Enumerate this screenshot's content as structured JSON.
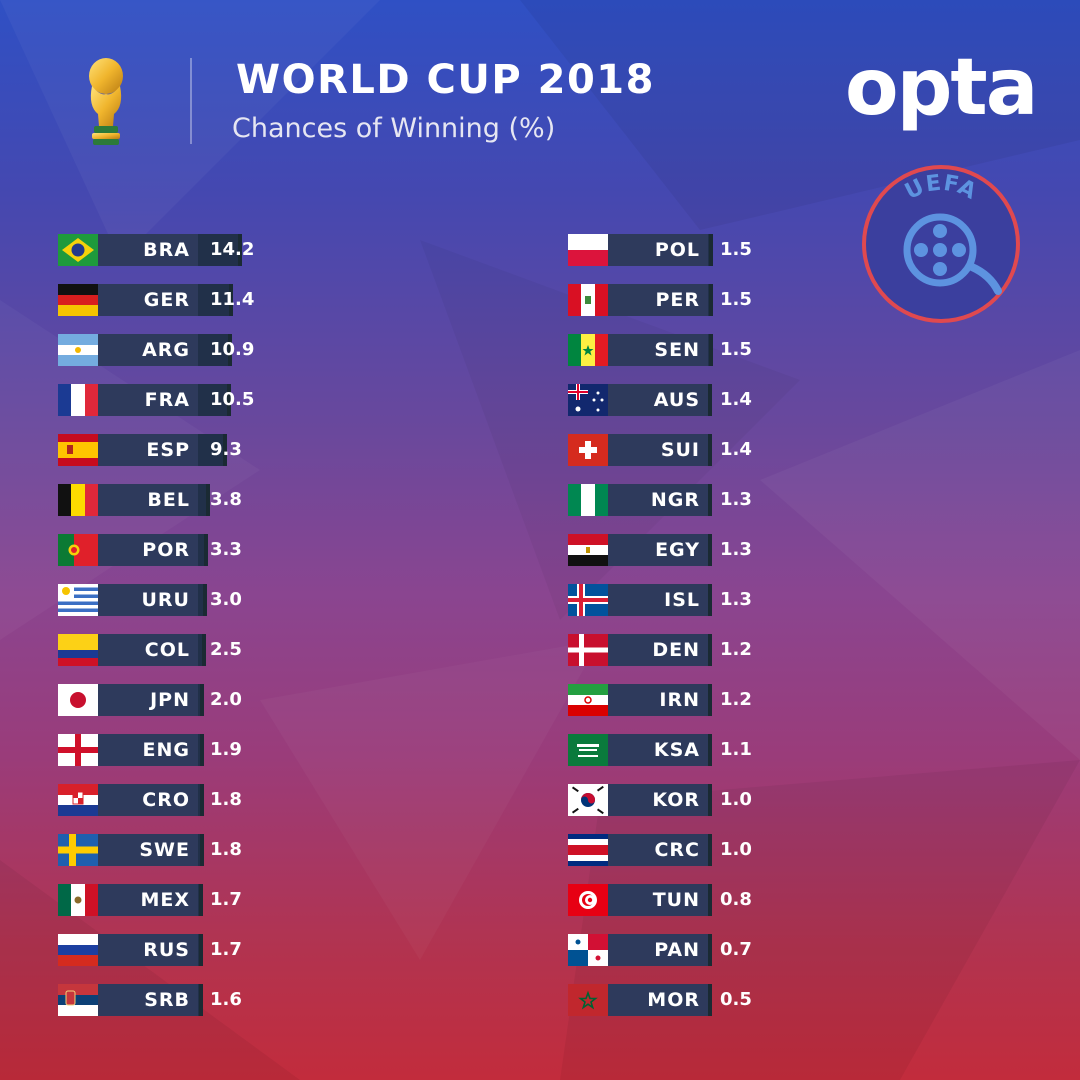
{
  "header": {
    "title": "WORLD CUP 2018",
    "subtitle": "Chances of Winning (%)",
    "brand": "opta",
    "watermark_text": "UEFA"
  },
  "colors": {
    "bar": "#213049",
    "code_box": "#2e3a5c",
    "text": "#ffffff"
  },
  "chart_data": {
    "type": "bar",
    "title": "WORLD CUP 2018",
    "subtitle": "Chances of Winning (%)",
    "orientation": "horizontal",
    "columns": [
      {
        "rows": [
          {
            "code": "BRA",
            "flag": "brazil-flag-icon",
            "value": 14.2,
            "label": "14.2"
          },
          {
            "code": "GER",
            "flag": "germany-flag-icon",
            "value": 11.4,
            "label": "11.4"
          },
          {
            "code": "ARG",
            "flag": "argentina-flag-icon",
            "value": 10.9,
            "label": "10.9"
          },
          {
            "code": "FRA",
            "flag": "france-flag-icon",
            "value": 10.5,
            "label": "10.5"
          },
          {
            "code": "ESP",
            "flag": "spain-flag-icon",
            "value": 9.3,
            "label": "9.3"
          },
          {
            "code": "BEL",
            "flag": "belgium-flag-icon",
            "value": 3.8,
            "label": "3.8"
          },
          {
            "code": "POR",
            "flag": "portugal-flag-icon",
            "value": 3.3,
            "label": "3.3"
          },
          {
            "code": "URU",
            "flag": "uruguay-flag-icon",
            "value": 3.0,
            "label": "3.0"
          },
          {
            "code": "COL",
            "flag": "colombia-flag-icon",
            "value": 2.5,
            "label": "2.5"
          },
          {
            "code": "JPN",
            "flag": "japan-flag-icon",
            "value": 2.0,
            "label": "2.0"
          },
          {
            "code": "ENG",
            "flag": "england-flag-icon",
            "value": 1.9,
            "label": "1.9"
          },
          {
            "code": "CRO",
            "flag": "croatia-flag-icon",
            "value": 1.8,
            "label": "1.8"
          },
          {
            "code": "SWE",
            "flag": "sweden-flag-icon",
            "value": 1.8,
            "label": "1.8"
          },
          {
            "code": "MEX",
            "flag": "mexico-flag-icon",
            "value": 1.7,
            "label": "1.7"
          },
          {
            "code": "RUS",
            "flag": "russia-flag-icon",
            "value": 1.7,
            "label": "1.7"
          },
          {
            "code": "SRB",
            "flag": "serbia-flag-icon",
            "value": 1.6,
            "label": "1.6"
          }
        ]
      },
      {
        "rows": [
          {
            "code": "POL",
            "flag": "poland-flag-icon",
            "value": 1.5,
            "label": "1.5"
          },
          {
            "code": "PER",
            "flag": "peru-flag-icon",
            "value": 1.5,
            "label": "1.5"
          },
          {
            "code": "SEN",
            "flag": "senegal-flag-icon",
            "value": 1.5,
            "label": "1.5"
          },
          {
            "code": "AUS",
            "flag": "australia-flag-icon",
            "value": 1.4,
            "label": "1.4"
          },
          {
            "code": "SUI",
            "flag": "switzerland-flag-icon",
            "value": 1.4,
            "label": "1.4"
          },
          {
            "code": "NGR",
            "flag": "nigeria-flag-icon",
            "value": 1.3,
            "label": "1.3"
          },
          {
            "code": "EGY",
            "flag": "egypt-flag-icon",
            "value": 1.3,
            "label": "1.3"
          },
          {
            "code": "ISL",
            "flag": "iceland-flag-icon",
            "value": 1.3,
            "label": "1.3"
          },
          {
            "code": "DEN",
            "flag": "denmark-flag-icon",
            "value": 1.2,
            "label": "1.2"
          },
          {
            "code": "IRN",
            "flag": "iran-flag-icon",
            "value": 1.2,
            "label": "1.2"
          },
          {
            "code": "KSA",
            "flag": "saudi-arabia-flag-icon",
            "value": 1.1,
            "label": "1.1"
          },
          {
            "code": "KOR",
            "flag": "south-korea-flag-icon",
            "value": 1.0,
            "label": "1.0"
          },
          {
            "code": "CRC",
            "flag": "costa-rica-flag-icon",
            "value": 1.0,
            "label": "1.0"
          },
          {
            "code": "TUN",
            "flag": "tunisia-flag-icon",
            "value": 0.8,
            "label": "0.8"
          },
          {
            "code": "PAN",
            "flag": "panama-flag-icon",
            "value": 0.7,
            "label": "0.7"
          },
          {
            "code": "MOR",
            "flag": "morocco-flag-icon",
            "value": 0.5,
            "label": "0.5"
          }
        ]
      }
    ]
  }
}
